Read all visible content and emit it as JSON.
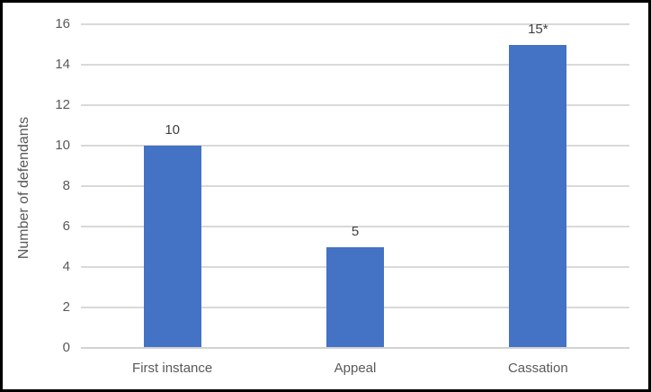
{
  "chart_data": {
    "type": "bar",
    "categories": [
      "First instance",
      "Appeal",
      "Cassation"
    ],
    "values": [
      10,
      5,
      15
    ],
    "value_labels": [
      "10",
      "5",
      "15*"
    ],
    "title": "",
    "xlabel": "",
    "ylabel": "Number of defendants",
    "ylim": [
      0,
      16
    ],
    "yticks": [
      0,
      2,
      4,
      6,
      8,
      10,
      12,
      14,
      16
    ],
    "grid": true,
    "legend": false,
    "colors": {
      "bar": "#4472C4",
      "gridline": "#D9D9D9",
      "axis_line": "#D2D2D2",
      "tick_label": "#595959",
      "data_label": "#404040",
      "border": "#000000",
      "background": "#FFFFFF"
    }
  }
}
